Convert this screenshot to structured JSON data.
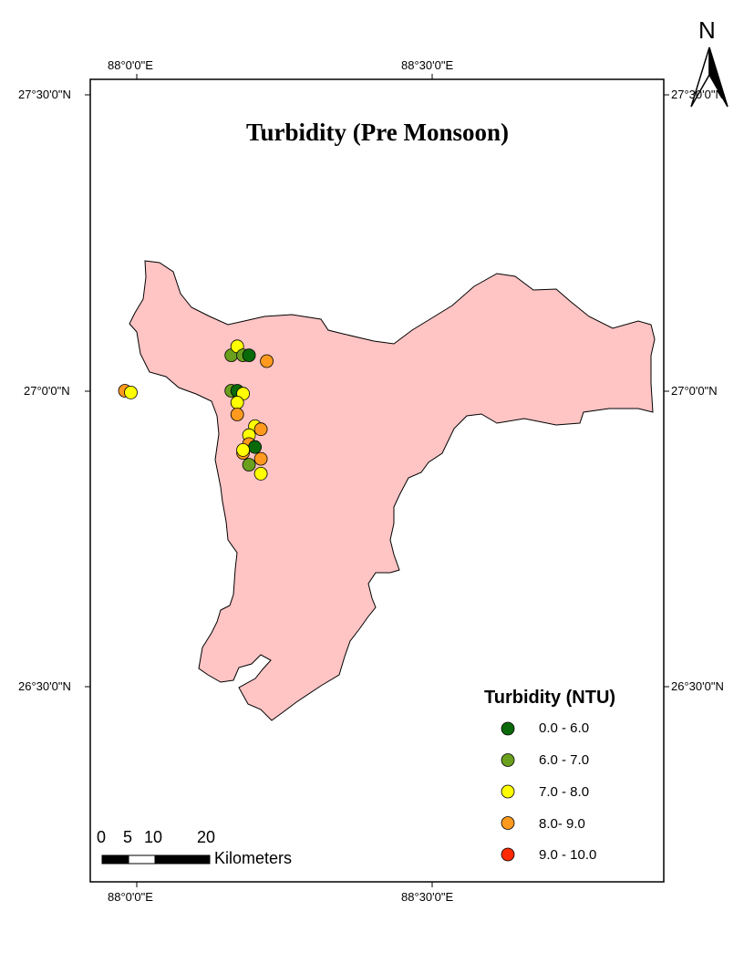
{
  "title": "Turbidity (Pre Monsoon)",
  "north_arrow": {
    "letter": "N",
    "icon": "north-arrow-icon"
  },
  "graticule": {
    "top_longitudes": [
      "88°0'0\"E",
      "88°30'0\"E"
    ],
    "bottom_longitudes": [
      "88°0'0\"E",
      "88°30'0\"E"
    ],
    "left_latitudes": [
      "27°30'0\"N",
      "27°0'0\"N",
      "26°30'0\"N"
    ],
    "right_latitudes": [
      "27°30'0\"N",
      "27°0'0\"N",
      "26°30'0\"N"
    ]
  },
  "legend": {
    "title": "Turbidity (NTU)",
    "classes": [
      {
        "label": "0.0 - 6.0",
        "color": "#0a6a0a"
      },
      {
        "label": "6.0 - 7.0",
        "color": "#6aa01e"
      },
      {
        "label": "7.0 - 8.0",
        "color": "#ffff00"
      },
      {
        "label": "8.0- 9.0",
        "color": "#ff9a1e"
      },
      {
        "label": "9.0 - 10.0",
        "color": "#ff2a00"
      }
    ]
  },
  "scale_bar": {
    "labels": [
      "0",
      "5",
      "10",
      "20"
    ],
    "unit": "Kilometers"
  },
  "region": {
    "fill": "#ffc4c4",
    "stroke": "#000000"
  },
  "sample_points": [
    {
      "lon": 87.98,
      "lat": 27.0,
      "cls": 3
    },
    {
      "lon": 87.99,
      "lat": 26.997,
      "cls": 2
    },
    {
      "lon": 88.16,
      "lat": 27.06,
      "cls": 1
    },
    {
      "lon": 88.17,
      "lat": 27.075,
      "cls": 2
    },
    {
      "lon": 88.18,
      "lat": 27.06,
      "cls": 1
    },
    {
      "lon": 88.19,
      "lat": 27.06,
      "cls": 0
    },
    {
      "lon": 88.22,
      "lat": 27.05,
      "cls": 3
    },
    {
      "lon": 88.16,
      "lat": 27.0,
      "cls": 1
    },
    {
      "lon": 88.17,
      "lat": 27.0,
      "cls": 0
    },
    {
      "lon": 88.18,
      "lat": 26.995,
      "cls": 2
    },
    {
      "lon": 88.17,
      "lat": 26.98,
      "cls": 2
    },
    {
      "lon": 88.17,
      "lat": 26.96,
      "cls": 3
    },
    {
      "lon": 88.2,
      "lat": 26.94,
      "cls": 2
    },
    {
      "lon": 88.21,
      "lat": 26.935,
      "cls": 3
    },
    {
      "lon": 88.19,
      "lat": 26.925,
      "cls": 2
    },
    {
      "lon": 88.19,
      "lat": 26.91,
      "cls": 3
    },
    {
      "lon": 88.2,
      "lat": 26.905,
      "cls": 0
    },
    {
      "lon": 88.18,
      "lat": 26.895,
      "cls": 3
    },
    {
      "lon": 88.18,
      "lat": 26.9,
      "cls": 2
    },
    {
      "lon": 88.21,
      "lat": 26.885,
      "cls": 3
    },
    {
      "lon": 88.19,
      "lat": 26.875,
      "cls": 1
    },
    {
      "lon": 88.21,
      "lat": 26.86,
      "cls": 2
    }
  ]
}
